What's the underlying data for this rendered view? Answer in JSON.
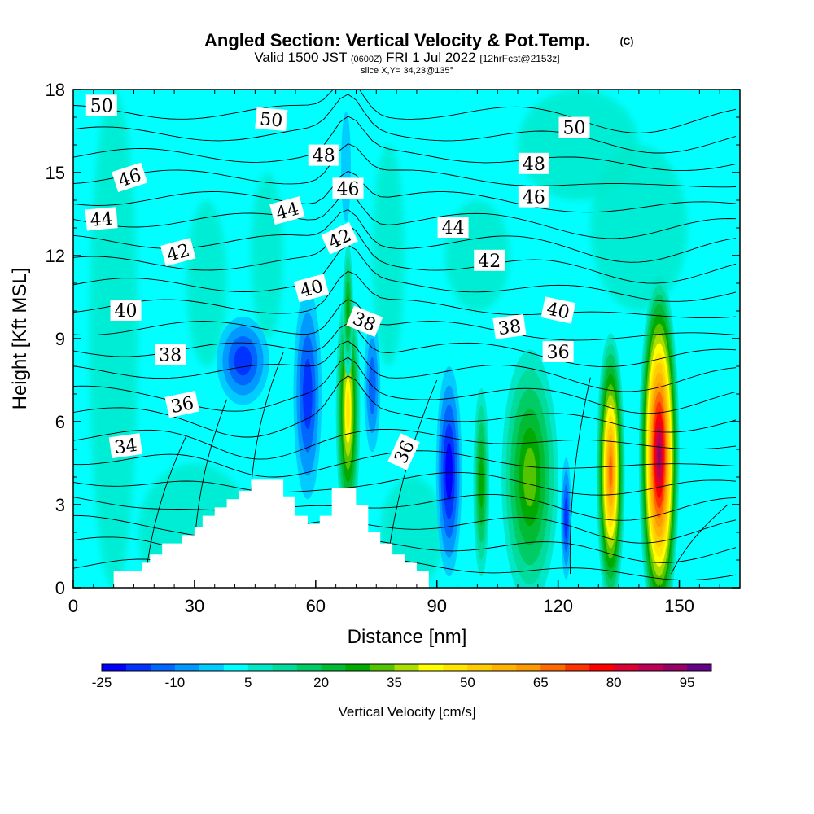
{
  "title": {
    "main": "Angled Section: Vertical Velocity & Pot.Temp.",
    "copyright": "(C)",
    "valid_prefix": "Valid 1500 JST",
    "valid_utc": "(0600Z)",
    "valid_date": "FRI 1 Jul 2022",
    "forecast": "[12hrFcst@2153z]",
    "slice": "slice X,Y= 34,23@135°"
  },
  "chart_data": {
    "type": "heatmap",
    "xlabel": "Distance [nm]",
    "ylabel": "Height [Kft MSL]",
    "xlim": [
      0,
      165
    ],
    "ylim": [
      0,
      18
    ],
    "x_ticks": [
      0,
      30,
      60,
      90,
      120,
      150
    ],
    "y_ticks": [
      0,
      3,
      6,
      9,
      12,
      15,
      18
    ],
    "grid": false,
    "background_color": "#00ffff",
    "colorbar": {
      "label": "Vertical Velocity [cm/s]",
      "placement": "bottom",
      "levels": [
        -25,
        -20,
        -15,
        -10,
        -5,
        0,
        5,
        10,
        15,
        20,
        25,
        30,
        35,
        40,
        45,
        50,
        55,
        60,
        65,
        70,
        75,
        80,
        85,
        90,
        95,
        100
      ],
      "tick_labels": [
        "-25",
        "-10",
        "5",
        "20",
        "35",
        "50",
        "65",
        "80",
        "95"
      ],
      "colors": [
        "#0000ff",
        "#0033ff",
        "#0066ff",
        "#0099ff",
        "#00ccff",
        "#00ffff",
        "#00e8c8",
        "#00dc9c",
        "#00cc66",
        "#00bb33",
        "#00aa00",
        "#55c400",
        "#aadd00",
        "#ffff00",
        "#ffe500",
        "#ffcc00",
        "#ffb200",
        "#ff9900",
        "#ff6a00",
        "#ff3300",
        "#ff0000",
        "#dd0033",
        "#bb0055",
        "#990066",
        "#660088"
      ]
    },
    "terrain": {
      "color": "#ffffff",
      "points": [
        [
          10,
          0
        ],
        [
          10,
          0.6
        ],
        [
          17,
          0.6
        ],
        [
          17,
          0.9
        ],
        [
          19,
          0.9
        ],
        [
          19,
          1.2
        ],
        [
          22,
          1.2
        ],
        [
          22,
          1.6
        ],
        [
          27,
          1.6
        ],
        [
          27,
          1.9
        ],
        [
          30,
          1.9
        ],
        [
          30,
          2.2
        ],
        [
          32,
          2.2
        ],
        [
          32,
          2.6
        ],
        [
          35,
          2.6
        ],
        [
          35,
          2.9
        ],
        [
          38,
          2.9
        ],
        [
          38,
          3.2
        ],
        [
          41,
          3.2
        ],
        [
          41,
          3.5
        ],
        [
          44,
          3.5
        ],
        [
          44,
          3.9
        ],
        [
          52,
          3.9
        ],
        [
          52,
          3.3
        ],
        [
          55,
          3.3
        ],
        [
          55,
          2.6
        ],
        [
          58,
          2.6
        ],
        [
          58,
          2.3
        ],
        [
          61,
          2.3
        ],
        [
          61,
          2.6
        ],
        [
          64,
          2.6
        ],
        [
          64,
          3.6
        ],
        [
          70,
          3.6
        ],
        [
          70,
          3.0
        ],
        [
          73,
          3.0
        ],
        [
          73,
          2.0
        ],
        [
          76,
          2.0
        ],
        [
          76,
          1.6
        ],
        [
          79,
          1.6
        ],
        [
          79,
          1.2
        ],
        [
          82,
          1.2
        ],
        [
          82,
          0.9
        ],
        [
          85,
          0.9
        ],
        [
          85,
          0.6
        ],
        [
          88,
          0.6
        ],
        [
          88,
          0
        ]
      ]
    },
    "contour_labels": [
      {
        "text": "50",
        "x": 7,
        "y": 17.4,
        "angle": 0
      },
      {
        "text": "50",
        "x": 49,
        "y": 16.9,
        "angle": 5
      },
      {
        "text": "50",
        "x": 124,
        "y": 16.6,
        "angle": 0
      },
      {
        "text": "48",
        "x": 62,
        "y": 15.6,
        "angle": 0
      },
      {
        "text": "48",
        "x": 114,
        "y": 15.3,
        "angle": 0
      },
      {
        "text": "46",
        "x": 14,
        "y": 14.8,
        "angle": -18
      },
      {
        "text": "46",
        "x": 68,
        "y": 14.4,
        "angle": 0
      },
      {
        "text": "46",
        "x": 114,
        "y": 14.1,
        "angle": 0
      },
      {
        "text": "44",
        "x": 7,
        "y": 13.3,
        "angle": -5
      },
      {
        "text": "44",
        "x": 53,
        "y": 13.6,
        "angle": -15
      },
      {
        "text": "44",
        "x": 94,
        "y": 13.0,
        "angle": 0
      },
      {
        "text": "42",
        "x": 26,
        "y": 12.1,
        "angle": -15
      },
      {
        "text": "42",
        "x": 66,
        "y": 12.6,
        "angle": -25
      },
      {
        "text": "42",
        "x": 103,
        "y": 11.8,
        "angle": 0
      },
      {
        "text": "40",
        "x": 13,
        "y": 10.0,
        "angle": 0
      },
      {
        "text": "40",
        "x": 59,
        "y": 10.8,
        "angle": -15
      },
      {
        "text": "40",
        "x": 120,
        "y": 10.0,
        "angle": 12
      },
      {
        "text": "38",
        "x": 24,
        "y": 8.4,
        "angle": 0
      },
      {
        "text": "38",
        "x": 72,
        "y": 9.6,
        "angle": 22
      },
      {
        "text": "38",
        "x": 108,
        "y": 9.4,
        "angle": -8
      },
      {
        "text": "36",
        "x": 27,
        "y": 6.6,
        "angle": -12
      },
      {
        "text": "36",
        "x": 120,
        "y": 8.5,
        "angle": 0
      },
      {
        "text": "36",
        "x": 82,
        "y": 4.9,
        "angle": -65
      },
      {
        "text": "34",
        "x": 13,
        "y": 5.1,
        "angle": -8
      }
    ],
    "vertical_velocity_cells": [
      {
        "x": 68,
        "y": 6.4,
        "rx": 3,
        "ry": 4.5,
        "value": 45
      },
      {
        "x": 68,
        "y": 10.0,
        "rx": 1.3,
        "ry": 2.4,
        "value": 25
      },
      {
        "x": 67.5,
        "y": 15.2,
        "rx": 1.2,
        "ry": 2.0,
        "value": -5
      },
      {
        "x": 58,
        "y": 7.0,
        "rx": 3.5,
        "ry": 3.8,
        "value": -20
      },
      {
        "x": 42,
        "y": 8.2,
        "rx": 6.5,
        "ry": 1.6,
        "value": -20
      },
      {
        "x": 74,
        "y": 7.3,
        "rx": 2,
        "ry": 2.4,
        "value": -15
      },
      {
        "x": 93,
        "y": 4.2,
        "rx": 3.2,
        "ry": 3.8,
        "value": -25
      },
      {
        "x": 101,
        "y": 3.8,
        "rx": 2,
        "ry": 3.4,
        "value": 25
      },
      {
        "x": 113,
        "y": 4.0,
        "rx": 7,
        "ry": 4.6,
        "value": 30
      },
      {
        "x": 122,
        "y": 2.5,
        "rx": 1.3,
        "ry": 2.2,
        "value": -20
      },
      {
        "x": 133,
        "y": 4.2,
        "rx": 3.5,
        "ry": 5.0,
        "value": 65
      },
      {
        "x": 145,
        "y": 4.8,
        "rx": 5,
        "ry": 6.5,
        "value": 90
      }
    ]
  }
}
